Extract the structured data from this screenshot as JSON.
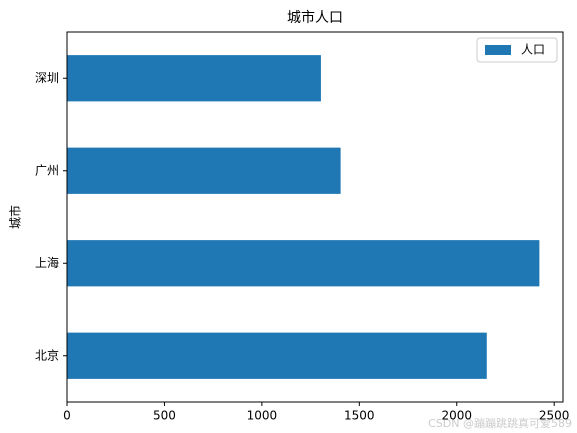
{
  "chart_data": {
    "type": "barh",
    "title": "城市人口",
    "ylabel": "城市",
    "categories": [
      "北京",
      "上海",
      "广州",
      "深圳"
    ],
    "series": [
      {
        "name": "人口",
        "color": "#1f77b4",
        "values": [
          2154,
          2424,
          1404,
          1303
        ]
      }
    ],
    "xlim": [
      0,
      2545.2
    ],
    "xticks": [
      0,
      500,
      1000,
      1500,
      2000,
      2500
    ],
    "legend": "upper right",
    "watermark": "CSDN @蹦蹦跳跳真可爱589"
  }
}
